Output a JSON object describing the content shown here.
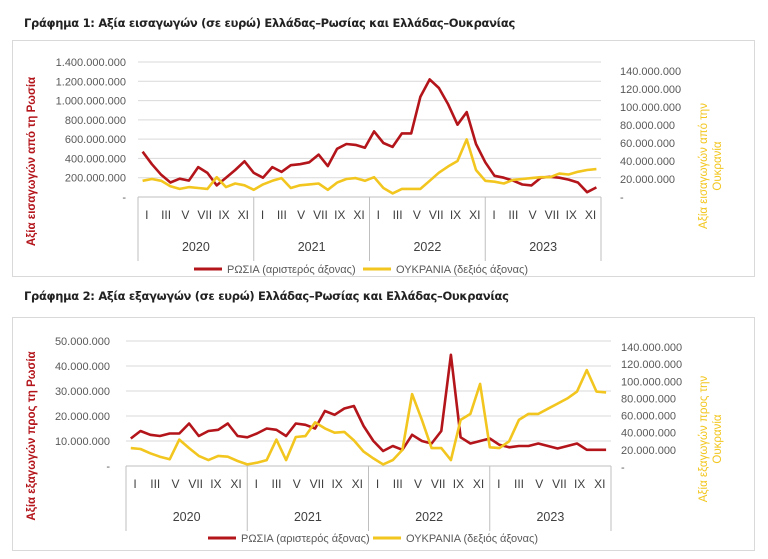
{
  "colors": {
    "russia": "#b3151b",
    "ukraine": "#f2c61f",
    "grid": "#d9d9d9",
    "tick": "#595959"
  },
  "chart_data": [
    {
      "type": "line",
      "title": "Γράφημα 1: Αξία εισαγωγών (σε ευρώ) Ελλάδας–Ρωσίας και Ελλάδας–Ουκρανίας",
      "ylabel": "Αξία εισαγωγών από τη Ρωσία",
      "y2label_line1": "Αξία εισαγωγών από την",
      "y2label_line2": "Ουκρανία",
      "ylim": [
        0,
        1400000000
      ],
      "y2lim": [
        0,
        140000000
      ],
      "yticks": [
        "1.400.000.000",
        "1.200.000.000",
        "1.000.000.000",
        "800.000.000",
        "600.000.000",
        "400.000.000",
        "200.000.000",
        "-"
      ],
      "y2ticks": [
        "140.000.000",
        "120.000.000",
        "100.000.000",
        "80.000.000",
        "60.000.000",
        "40.000.000",
        "20.000.000",
        "-"
      ],
      "month_ticks": [
        "I",
        "III",
        "V",
        "VII",
        "IX",
        "XI"
      ],
      "years": [
        "2020",
        "2021",
        "2022",
        "2023"
      ],
      "grid": true,
      "legend_position": "bottom",
      "series": [
        {
          "name": "ΡΩΣΙΑ (αριστερός άξονας)",
          "axis": "left",
          "values": [
            470000000,
            340000000,
            230000000,
            150000000,
            190000000,
            170000000,
            310000000,
            250000000,
            120000000,
            200000000,
            280000000,
            370000000,
            250000000,
            200000000,
            310000000,
            260000000,
            330000000,
            340000000,
            360000000,
            440000000,
            320000000,
            500000000,
            550000000,
            540000000,
            510000000,
            680000000,
            560000000,
            520000000,
            660000000,
            660000000,
            1040000000,
            1220000000,
            1130000000,
            960000000,
            750000000,
            880000000,
            550000000,
            360000000,
            220000000,
            200000000,
            170000000,
            130000000,
            120000000,
            200000000,
            210000000,
            200000000,
            180000000,
            150000000,
            50000000,
            100000000
          ]
        },
        {
          "name": "ΟΥΚΡΑΝΙΑ (δεξιός άξονας)",
          "axis": "right",
          "values": [
            18000000,
            20000000,
            18000000,
            12000000,
            9000000,
            11000000,
            10000000,
            9000000,
            22000000,
            11000000,
            15000000,
            13000000,
            8000000,
            14000000,
            18000000,
            21000000,
            10000000,
            13000000,
            14000000,
            15000000,
            8000000,
            16000000,
            20000000,
            21000000,
            18000000,
            22000000,
            10000000,
            4000000,
            9000000,
            9000000,
            9000000,
            18000000,
            27000000,
            34000000,
            40000000,
            64000000,
            30000000,
            18000000,
            17000000,
            15000000,
            19000000,
            20000000,
            21000000,
            22000000,
            22000000,
            26000000,
            25000000,
            28000000,
            30000000,
            31000000
          ]
        }
      ]
    },
    {
      "type": "line",
      "title": "Γράφημα 2: Αξία εξαγωγών (σε ευρώ) Ελλάδας–Ρωσίας και Ελλάδας–Ουκρανίας",
      "ylabel": "Αξία εξαγωγών προς τη Ρωσία",
      "y2label_line1": "Αξία εξαγωγών προς την",
      "y2label_line2": "Ουκρανία",
      "ylim": [
        0,
        50000000
      ],
      "y2lim": [
        0,
        140000000
      ],
      "yticks": [
        "50.000.000",
        "40.000.000",
        "30.000.000",
        "20.000.000",
        "10.000.000",
        "-"
      ],
      "y2ticks": [
        "140.000.000",
        "120.000.000",
        "100.000.000",
        "80.000.000",
        "60.000.000",
        "40.000.000",
        "20.000.000",
        "-"
      ],
      "month_ticks": [
        "I",
        "III",
        "V",
        "VII",
        "IX",
        "XI"
      ],
      "years": [
        "2020",
        "2021",
        "2022",
        "2023"
      ],
      "grid": true,
      "legend_position": "bottom",
      "series": [
        {
          "name": "ΡΩΣΙΑ (αριστερός άξονας)",
          "axis": "left",
          "values": [
            11000000,
            14000000,
            12500000,
            12000000,
            13000000,
            13000000,
            17000000,
            12000000,
            14000000,
            14500000,
            17000000,
            12000000,
            11500000,
            13000000,
            15000000,
            14500000,
            12000000,
            17000000,
            16500000,
            15000000,
            22000000,
            20500000,
            23000000,
            24000000,
            16000000,
            10000000,
            6000000,
            8000000,
            6500000,
            12500000,
            10000000,
            9000000,
            14000000,
            44500000,
            11500000,
            9000000,
            10000000,
            11000000,
            8500000,
            7500000,
            8000000,
            8000000,
            9000000,
            8000000,
            7000000,
            8000000,
            9000000,
            6500000,
            6500000,
            6500000
          ]
        },
        {
          "name": "ΟΥΚΡΑΝΙΑ (δεξιός άξονας)",
          "axis": "right",
          "values": [
            22000000,
            21000000,
            16000000,
            12000000,
            9000000,
            32000000,
            22000000,
            13000000,
            8000000,
            13000000,
            12000000,
            7000000,
            3000000,
            5000000,
            8000000,
            32000000,
            8000000,
            35000000,
            36000000,
            52000000,
            45000000,
            40000000,
            41000000,
            31000000,
            18000000,
            10000000,
            3000000,
            8000000,
            20000000,
            85000000,
            55000000,
            22000000,
            22000000,
            8000000,
            55000000,
            62000000,
            97000000,
            23000000,
            22000000,
            30000000,
            55000000,
            62000000,
            62000000,
            68000000,
            74000000,
            80000000,
            88000000,
            113000000,
            88000000,
            87000000
          ]
        }
      ]
    }
  ]
}
